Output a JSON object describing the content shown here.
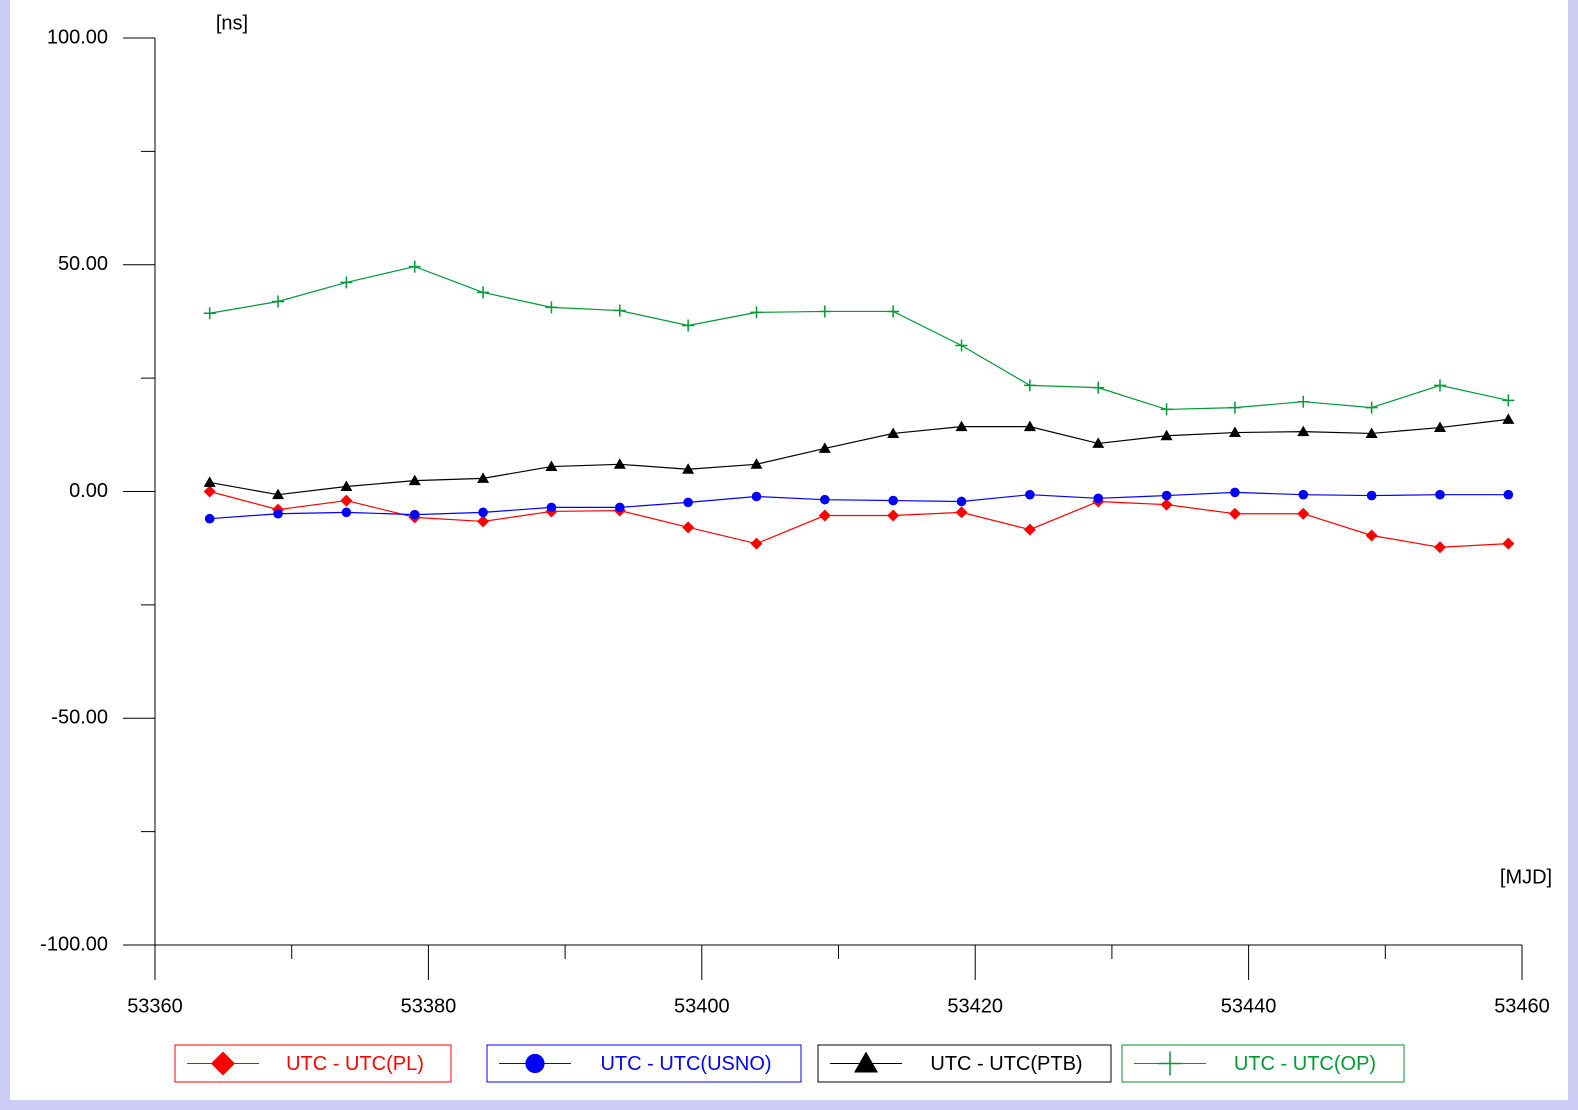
{
  "chart_data": {
    "type": "line",
    "x_label": "[MJD]",
    "y_label": "[ns]",
    "x": [
      53364,
      53369,
      53374,
      53379,
      53384,
      53389,
      53394,
      53399,
      53404,
      53409,
      53414,
      53419,
      53424,
      53429,
      53434,
      53439,
      53444,
      53449,
      53454,
      53459
    ],
    "series": [
      {
        "name": "UTC - UTC(PL)",
        "color": "#ff0000",
        "marker": "diamond",
        "values": [
          0,
          -4.0,
          -2.0,
          -5.7,
          -6.6,
          -4.4,
          -4.2,
          -7.9,
          -11.5,
          -5.3,
          -5.3,
          -4.6,
          -8.4,
          -2.2,
          -2.9,
          -4.9,
          -4.9,
          -9.7,
          -12.3,
          -11.5
        ]
      },
      {
        "name": "UTC - UTC(USNO)",
        "color": "#0000ff",
        "marker": "circle",
        "values": [
          -6.0,
          -4.9,
          -4.6,
          -5.1,
          -4.6,
          -3.5,
          -3.5,
          -2.4,
          -1.1,
          -1.8,
          -2.0,
          -2.2,
          -0.7,
          -1.5,
          -0.9,
          -0.2,
          -0.7,
          -0.9,
          -0.7,
          -0.7
        ]
      },
      {
        "name": "UTC - UTC(PTB)",
        "color": "#000000",
        "marker": "triangle",
        "values": [
          2.0,
          -0.7,
          1.1,
          2.4,
          2.9,
          5.5,
          6.0,
          4.9,
          6.0,
          9.5,
          12.8,
          14.3,
          14.3,
          10.6,
          12.3,
          13.0,
          13.2,
          12.8,
          14.1,
          15.9
        ]
      },
      {
        "name": "UTC - UTC(OP)",
        "color": "#009933",
        "marker": "plus",
        "values": [
          39.3,
          41.9,
          46.1,
          49.6,
          43.9,
          40.6,
          39.9,
          36.6,
          39.5,
          39.7,
          39.7,
          32.2,
          23.4,
          22.9,
          18.1,
          18.5,
          19.8,
          18.5,
          23.4,
          20.1
        ]
      }
    ],
    "xlim": [
      53360,
      53460
    ],
    "xticks": [
      53360,
      53380,
      53400,
      53420,
      53440,
      53460
    ],
    "xminorticks": [
      53370,
      53390,
      53410,
      53430,
      53450
    ],
    "ylim": [
      -100,
      100
    ],
    "yticks": [
      {
        "value": -100,
        "label": "-100.00"
      },
      {
        "value": -50,
        "label": "-50.00"
      },
      {
        "value": 0,
        "label": "0.00"
      },
      {
        "value": 50,
        "label": "50.00"
      },
      {
        "value": 100,
        "label": "100.00"
      }
    ],
    "yminorticks": [
      -75,
      -25,
      25,
      75
    ],
    "legend": "bottom"
  }
}
